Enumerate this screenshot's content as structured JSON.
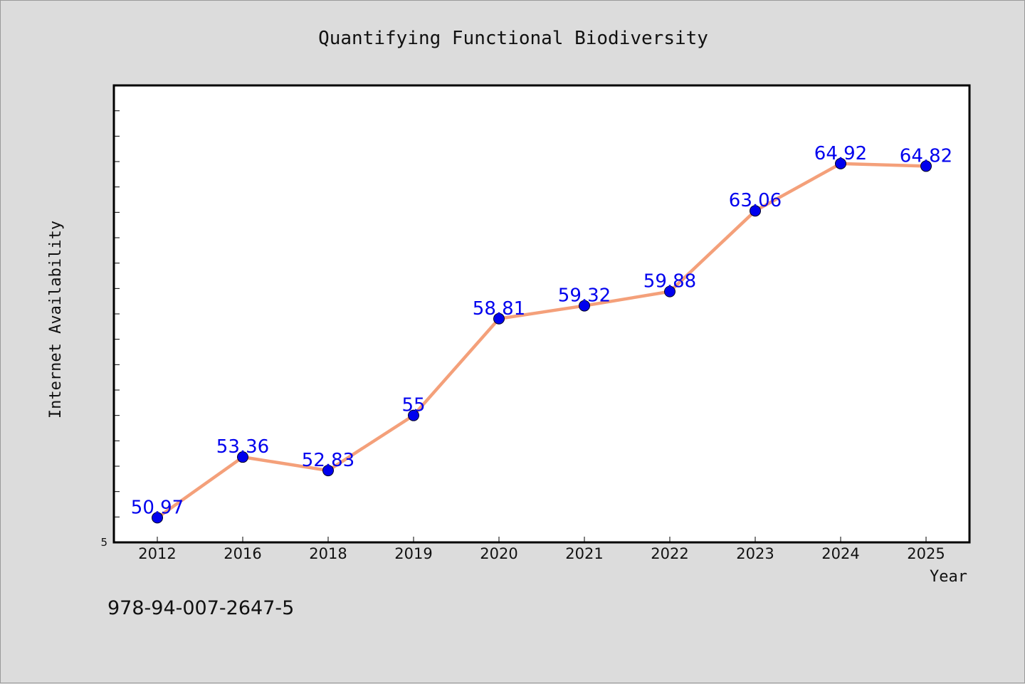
{
  "footer_text": "978-94-007-2647-5",
  "chart_data": {
    "type": "line",
    "title": "Quantifying Functional Biodiversity",
    "xlabel": "Year",
    "ylabel": "Internet Availability",
    "categories": [
      "2012",
      "2016",
      "2018",
      "2019",
      "2020",
      "2021",
      "2022",
      "2023",
      "2024",
      "2025"
    ],
    "values": [
      50.97,
      53.36,
      52.83,
      55,
      58.81,
      59.32,
      59.88,
      63.06,
      64.92,
      64.82
    ],
    "data_labels": [
      "50.97",
      "53.36",
      "52.83",
      "55",
      "58.81",
      "59.32",
      "59.88",
      "63.06",
      "64.92",
      "64.82"
    ],
    "y_tick_labels": [
      "5"
    ],
    "ylim": [
      50,
      68
    ],
    "y_minor_tick_step": 1,
    "grid": false,
    "legend": "none",
    "colors": {
      "line": "#f4a07a",
      "marker": "#0000ee",
      "data_label": "#0000ee",
      "background": "#dcdcdc",
      "plot_background": "#ffffff"
    }
  }
}
